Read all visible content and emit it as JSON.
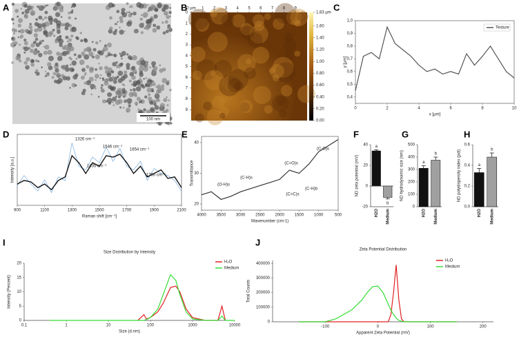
{
  "chart_data": [
    {
      "type": "image",
      "letter": "A",
      "scale_bar": "100 nm"
    },
    {
      "type": "image",
      "letter": "B",
      "xlim": [
        0,
        10
      ],
      "ylim": [
        0,
        10
      ],
      "xticks": [
        {
          "value": 0,
          "label": "0 µm"
        },
        1,
        2,
        3,
        4,
        5,
        6,
        7,
        8,
        9
      ],
      "yticks": [
        0,
        1,
        2,
        3,
        4,
        5,
        6,
        7,
        8,
        9
      ],
      "colorbar_lim": [
        0,
        1.83
      ],
      "colorbar_ticks": [
        {
          "value": 1.83,
          "label": "1.83 µm"
        },
        {
          "value": 1.6,
          "label": "1.60"
        },
        {
          "value": 1.4,
          "label": "1.40"
        },
        {
          "value": 1.2,
          "label": "1.20"
        },
        {
          "value": 1.0,
          "label": "1.00"
        },
        {
          "value": 0.8,
          "label": "0.80"
        },
        {
          "value": 0.6,
          "label": "0.60"
        },
        {
          "value": 0.4,
          "label": "0.40"
        },
        {
          "value": 0.2,
          "label": "0.20"
        },
        {
          "value": 0,
          "label": "0.00"
        }
      ]
    },
    {
      "type": "line",
      "letter": "C",
      "xlabel": "x [µm]",
      "ylabel": "y [µm]",
      "x": [
        0,
        0.5,
        1,
        1.5,
        2,
        2.5,
        3,
        3.5,
        4,
        4.5,
        5,
        5.5,
        6,
        6.5,
        7,
        7.5,
        8,
        8.5,
        9,
        9.5,
        10
      ],
      "series": [
        {
          "name": "Texture",
          "color": "#555555",
          "values": [
            0.45,
            0.72,
            0.75,
            0.7,
            0.95,
            0.82,
            0.77,
            0.72,
            0.65,
            0.6,
            0.62,
            0.58,
            0.6,
            0.58,
            0.74,
            0.65,
            0.72,
            0.8,
            0.7,
            0.6,
            0.55
          ]
        }
      ],
      "xlim": [
        0,
        10
      ],
      "ylim": [
        0.35,
        1.0
      ],
      "xticks": [
        0,
        2,
        4,
        6,
        8,
        10
      ],
      "yticks": [
        {
          "value": 0.4,
          "label": "0,4"
        },
        {
          "value": 0.5,
          "label": "0,5"
        },
        {
          "value": 0.6,
          "label": "0,6"
        },
        {
          "value": 0.7,
          "label": "0,7"
        },
        {
          "value": 0.8,
          "label": "0,8"
        },
        {
          "value": 0.9,
          "label": "0,9"
        },
        {
          "value": 1.0,
          "label": "1,0"
        }
      ]
    },
    {
      "type": "line",
      "letter": "D",
      "xlabel": "Raman shift [cm⁻¹]",
      "ylabel": "Intensity [a.u.]",
      "annotations": [
        "1326 cm⁻¹",
        "1546 cm⁻¹",
        "1654 cm⁻¹",
        "1435 cm⁻¹",
        "1790 cm⁻¹"
      ],
      "x": [
        900,
        950,
        1000,
        1050,
        1100,
        1150,
        1200,
        1250,
        1300,
        1350,
        1400,
        1450,
        1500,
        1550,
        1600,
        1650,
        1700,
        1750,
        1800,
        1850,
        1900,
        1950,
        2000,
        2050,
        2100
      ],
      "series": [
        {
          "color": "#5b9bd5",
          "values": [
            28,
            42,
            30,
            20,
            36,
            18,
            40,
            35,
            88,
            55,
            50,
            68,
            60,
            82,
            62,
            80,
            55,
            50,
            62,
            35,
            52,
            45,
            42,
            35,
            20
          ]
        },
        {
          "color": "#111111",
          "values": [
            30,
            35,
            33,
            25,
            30,
            22,
            35,
            40,
            70,
            60,
            45,
            60,
            55,
            70,
            68,
            72,
            60,
            45,
            55,
            40,
            45,
            50,
            38,
            40,
            25
          ]
        }
      ],
      "xlim": [
        900,
        2100
      ],
      "ylim": [
        0,
        100
      ],
      "xticks": [
        900,
        1100,
        1300,
        1500,
        1700,
        1900,
        2100
      ]
    },
    {
      "type": "line",
      "letter": "E",
      "xlabel": "Wavenumber (cm-1)",
      "ylabel": "Transmittance",
      "annotations": [
        "(O-H)s",
        "(C-H)s",
        "(C=O)s",
        "(C=C)s",
        "(C-H)b",
        "(C-O)s"
      ],
      "x": [
        4000,
        3750,
        3500,
        3250,
        3000,
        2750,
        2500,
        2250,
        2000,
        1750,
        1500,
        1250,
        1000,
        750,
        500
      ],
      "series": [
        {
          "color": "#333333",
          "values": [
            23,
            24,
            21.5,
            22.5,
            24,
            25,
            26,
            27,
            28,
            31,
            30,
            33,
            37,
            39,
            41
          ]
        }
      ],
      "xlim": [
        4000,
        500
      ],
      "ylim": [
        18,
        42
      ],
      "xticks": [
        4000,
        3500,
        3000,
        2500,
        2000,
        1500,
        1000,
        500
      ],
      "yticks": [
        20,
        30,
        40
      ]
    },
    {
      "type": "bar",
      "letter": "F",
      "ylabel": "ND zeta potential (mV)",
      "categories": [
        "H2O",
        "Medium"
      ],
      "values": [
        34,
        -11
      ],
      "errors": [
        1,
        1.5
      ],
      "colors": [
        "#111111",
        "#a0a0a0"
      ],
      "annotations": [
        "a",
        "b"
      ],
      "ylim": [
        -20,
        40
      ],
      "yticks": [
        -20,
        0,
        20,
        40
      ]
    },
    {
      "type": "bar",
      "letter": "G",
      "ylabel": "ND hydrodynamic size (nm)",
      "categories": [
        "H2O",
        "Medium"
      ],
      "values": [
        310,
        375
      ],
      "errors": [
        20,
        25
      ],
      "colors": [
        "#111111",
        "#a0a0a0"
      ],
      "annotations": [
        "a",
        "b"
      ],
      "ylim": [
        0,
        500
      ],
      "yticks": [
        0,
        100,
        200,
        300,
        400,
        500
      ]
    },
    {
      "type": "bar",
      "letter": "H",
      "ylabel": "ND polydispersity index (pdi)",
      "categories": [
        "H2O",
        "Medium"
      ],
      "values": [
        0.33,
        0.48
      ],
      "errors": [
        0.04,
        0.04
      ],
      "colors": [
        "#111111",
        "#a0a0a0"
      ],
      "annotations": [
        "a",
        "b"
      ],
      "ylim": [
        0,
        0.6
      ],
      "yticks": [
        {
          "value": 0,
          "label": "0.0"
        },
        0.2,
        0.4,
        0.6
      ]
    },
    {
      "type": "line",
      "letter": "I",
      "title": "Size Distribution by Intensity",
      "xlabel": "Size (d.nm)",
      "ylabel": "Intensity (Percent)",
      "log_x": true,
      "x": [
        0.4,
        10,
        50,
        70,
        80,
        100,
        150,
        200,
        300,
        400,
        500,
        700,
        1000,
        2000,
        4000,
        5000,
        6000,
        10000
      ],
      "series": [
        {
          "name": "H₂O",
          "color": "#e02020",
          "values": [
            null,
            null,
            0,
            2,
            0.5,
            1,
            3,
            6,
            11.5,
            12,
            10,
            4,
            1,
            0,
            0,
            5,
            0,
            null
          ]
        },
        {
          "name": "Medium",
          "color": "#33dd33",
          "values": [
            0,
            0,
            0,
            0,
            0.3,
            1,
            4,
            9,
            16,
            14,
            9,
            3,
            0.5,
            0,
            0,
            1.5,
            0,
            0
          ]
        }
      ],
      "xlim": [
        0.1,
        10000
      ],
      "ylim": [
        0,
        20
      ],
      "xticks": [
        0.1,
        1,
        10,
        100,
        1000,
        10000
      ],
      "yticks": [
        0,
        5,
        10,
        15,
        20
      ]
    },
    {
      "type": "line",
      "letter": "J",
      "title": "Zeta Potential Distribution",
      "xlabel": "Apparent Zeta Potential (mV)",
      "ylabel": "Total Counts",
      "x": [
        -150,
        -100,
        -80,
        -50,
        -30,
        -20,
        -10,
        0,
        10,
        20,
        25,
        30,
        35,
        40,
        45,
        50,
        100,
        150
      ],
      "series": [
        {
          "name": "H₂O",
          "color": "#e02020",
          "values": [
            0,
            0,
            0,
            0,
            0,
            0,
            0,
            0,
            0,
            0,
            50000,
            200000,
            390000,
            150000,
            20000,
            0,
            0,
            0
          ]
        },
        {
          "name": "Medium",
          "color": "#33dd33",
          "values": [
            0,
            0,
            20000,
            80000,
            150000,
            200000,
            240000,
            245000,
            200000,
            120000,
            80000,
            50000,
            25000,
            10000,
            4000,
            0,
            0,
            0
          ]
        }
      ],
      "xlim": [
        -200,
        220
      ],
      "ylim": [
        0,
        420000
      ],
      "xticks": [
        -100,
        0,
        100,
        200
      ],
      "yticks": [
        0,
        100000,
        200000,
        300000,
        400000
      ]
    }
  ]
}
